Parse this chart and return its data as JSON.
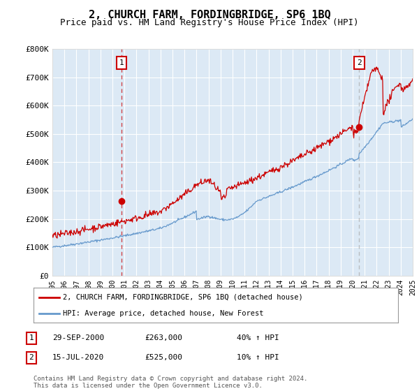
{
  "title": "2, CHURCH FARM, FORDINGBRIDGE, SP6 1BQ",
  "subtitle": "Price paid vs. HM Land Registry's House Price Index (HPI)",
  "title_fontsize": 11,
  "subtitle_fontsize": 9,
  "plot_bg_color": "#dce9f5",
  "fig_bg_color": "#ffffff",
  "ylim": [
    0,
    800000
  ],
  "yticks": [
    0,
    100000,
    200000,
    300000,
    400000,
    500000,
    600000,
    700000,
    800000
  ],
  "ytick_labels": [
    "£0",
    "£100K",
    "£200K",
    "£300K",
    "£400K",
    "£500K",
    "£600K",
    "£700K",
    "£800K"
  ],
  "sale1": {
    "date_num": 2000.75,
    "price": 263000,
    "label": "1"
  },
  "sale2": {
    "date_num": 2020.54,
    "price": 525000,
    "label": "2"
  },
  "vline1_color": "#cc0000",
  "vline2_color": "#aaaaaa",
  "legend_entries": [
    {
      "label": "2, CHURCH FARM, FORDINGBRIDGE, SP6 1BQ (detached house)",
      "color": "#cc0000"
    },
    {
      "label": "HPI: Average price, detached house, New Forest",
      "color": "#6699cc"
    }
  ],
  "annotation1": {
    "num": "1",
    "date": "29-SEP-2000",
    "price": "£263,000",
    "hpi": "40% ↑ HPI"
  },
  "annotation2": {
    "num": "2",
    "date": "15-JUL-2020",
    "price": "£525,000",
    "hpi": "10% ↑ HPI"
  },
  "footer": "Contains HM Land Registry data © Crown copyright and database right 2024.\nThis data is licensed under the Open Government Licence v3.0.",
  "red_line_color": "#cc0000",
  "blue_line_color": "#6699cc",
  "grid_color": "#ffffff",
  "marker_color": "#cc0000",
  "xlim": [
    1995,
    2025
  ],
  "xticks": [
    1995,
    1996,
    1997,
    1998,
    1999,
    2000,
    2001,
    2002,
    2003,
    2004,
    2005,
    2006,
    2007,
    2008,
    2009,
    2010,
    2011,
    2012,
    2013,
    2014,
    2015,
    2016,
    2017,
    2018,
    2019,
    2020,
    2021,
    2022,
    2023,
    2024,
    2025
  ]
}
